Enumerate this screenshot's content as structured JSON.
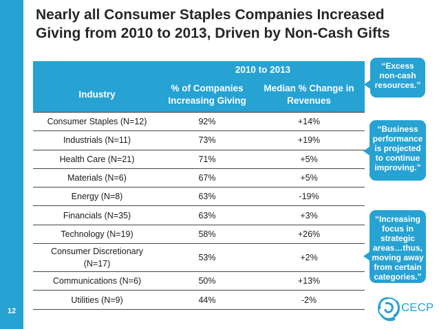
{
  "page_number": "12",
  "title": "Nearly all Consumer Staples Companies Increased Giving from 2010 to 2013, Driven by Non-Cash Gifts",
  "table": {
    "period_header": "2010 to 2013",
    "columns": [
      "Industry",
      "% of Companies Increasing Giving",
      "Median % Change in Revenues"
    ],
    "rows": [
      [
        "Consumer Staples (N=12)",
        "92%",
        "+14%"
      ],
      [
        "Industrials (N=11)",
        "73%",
        "+19%"
      ],
      [
        "Health Care (N=21)",
        "71%",
        "+5%"
      ],
      [
        "Materials (N=6)",
        "67%",
        "+5%"
      ],
      [
        "Energy (N=8)",
        "63%",
        "-19%"
      ],
      [
        "Financials (N=35)",
        "63%",
        "+3%"
      ],
      [
        "Technology (N=19)",
        "58%",
        "+26%"
      ],
      [
        "Consumer Discretionary (N=17)",
        "53%",
        "+2%"
      ],
      [
        "Communications (N=6)",
        "50%",
        "+13%"
      ],
      [
        "Utilities (N=9)",
        "44%",
        "-2%"
      ]
    ]
  },
  "callouts": [
    "“Excess non-cash resources.”",
    "“Business performance is projected to continue improving.”",
    "“Increasing focus in strategic areas…thus, moving away from certain categories.”"
  ],
  "logo": {
    "text": "CECP"
  },
  "colors": {
    "accent": "#26a2d3",
    "title": "#262626"
  }
}
